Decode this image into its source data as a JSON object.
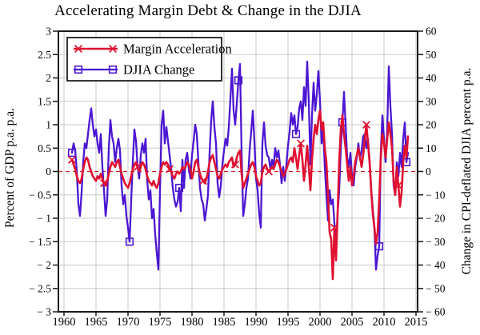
{
  "chart_data": {
    "type": "line",
    "title": "Accelerating Margin Debt & Change in the DJIA",
    "grid": true,
    "legend_position": "top-left",
    "x_start": 1961.25,
    "x_step": 0.25,
    "xlim": [
      1959.125,
      2015.25
    ],
    "x_ticks": {
      "years": [
        1960,
        1965,
        1970,
        1975,
        1980,
        1985,
        1990,
        1995,
        2000,
        2005,
        2010,
        2015
      ],
      "labels": [
        "1960",
        "1965",
        "1970",
        "1975",
        "1980",
        "1985",
        "1990",
        "1995",
        "2000",
        "2005",
        "2010",
        "2015"
      ]
    },
    "left_axis": {
      "label": "Percent of GDP p.a. p.a.",
      "lim": [
        -3,
        3
      ],
      "tick_values": [
        3,
        2.5,
        2,
        1.5,
        1,
        0.5,
        0,
        -0.5,
        -1,
        -1.5,
        -2,
        -2.5,
        -3
      ],
      "tick_labels": [
        "3",
        "2.5",
        "2",
        "1.5",
        "1",
        "0.5",
        "0",
        "− 0.5",
        "− 1",
        "− 1.5",
        "− 2",
        "− 2.5",
        "− 3"
      ]
    },
    "right_axis": {
      "label": "Change in CPI-deflated DJIA percent p.a.",
      "lim": [
        -60,
        60
      ],
      "tick_labels": [
        "60",
        "50",
        "40",
        "30",
        "20",
        "10",
        "0",
        "− 10",
        "− 20",
        "− 30",
        "− 40",
        "− 50",
        "− 60"
      ]
    },
    "zero_line": {
      "value": 0,
      "color": "#cc2222",
      "style": "dashed"
    },
    "grid_color": "#c9c9c9",
    "series": [
      {
        "name": "DJIA Change",
        "axis": "right",
        "color": "#4b16d2",
        "marker": "square",
        "marker_indices": [
          0,
          36,
          67,
          104,
          140,
          169,
          192,
          209
        ],
        "values": [
          8,
          12,
          9,
          0,
          -14,
          -19,
          -9,
          4,
          12,
          10,
          16,
          22,
          27,
          20,
          15,
          18,
          12,
          8,
          16,
          2,
          -8,
          -19,
          -12,
          10,
          22,
          15,
          12,
          4,
          10,
          14,
          9,
          -6,
          -14,
          -10,
          -19,
          -24,
          -30,
          -12,
          4,
          18,
          13,
          2,
          -3,
          7,
          12,
          8,
          14,
          -4,
          -12,
          -8,
          -20,
          -16,
          -27,
          -35,
          -42,
          -8,
          20,
          26,
          12,
          19,
          13,
          7,
          1,
          -7,
          -12,
          -15,
          -13,
          -7,
          -17,
          5,
          -7,
          5,
          8,
          1,
          -3,
          7,
          13,
          20,
          16,
          4,
          -7,
          -12,
          -14,
          -21,
          -16,
          -10,
          8,
          22,
          30,
          19,
          12,
          -5,
          -11,
          -6,
          3,
          9,
          14,
          11,
          19,
          31,
          44,
          26,
          20,
          29,
          39,
          46,
          8,
          -19,
          -14,
          -7,
          -3,
          9,
          17,
          26,
          13,
          -3,
          -8,
          -18,
          -24,
          12,
          21,
          11,
          7,
          6,
          1,
          5,
          2,
          10,
          6,
          9,
          3,
          -5,
          2,
          -4,
          3,
          11,
          17,
          25,
          20,
          24,
          16,
          19,
          27,
          30,
          22,
          36,
          28,
          47,
          30,
          3,
          24,
          38,
          26,
          33,
          43,
          30,
          12,
          18,
          2,
          -10,
          -21,
          -8,
          -14,
          -12,
          -22,
          -32,
          -18,
          -8,
          10,
          21,
          34,
          20,
          6,
          2,
          8,
          -2,
          -6,
          2,
          6,
          12,
          5,
          9,
          15,
          16,
          10,
          14,
          4,
          -8,
          -16,
          -24,
          -42,
          -36,
          -32,
          8,
          24,
          14,
          4,
          18,
          45,
          28,
          16,
          -6,
          -10,
          4,
          -2,
          8,
          2,
          14,
          21,
          4,
          8
        ]
      },
      {
        "name": "Margin Acceleration",
        "axis": "left",
        "color": "#e01030",
        "marker": "x",
        "marker_indices": [
          0,
          20,
          41,
          61,
          82,
          102,
          123,
          143,
          164,
          184,
          204
        ],
        "values": [
          0.25,
          0.15,
          0.05,
          -0.1,
          -0.2,
          -0.25,
          -0.15,
          0.05,
          0.2,
          0.3,
          0.25,
          0.1,
          0,
          -0.1,
          -0.15,
          -0.2,
          -0.1,
          -0.15,
          -0.05,
          -0.15,
          -0.25,
          -0.3,
          -0.2,
          -0.05,
          0.1,
          0.2,
          0.15,
          0.1,
          0.2,
          0.25,
          0.1,
          -0.05,
          -0.15,
          -0.25,
          -0.3,
          -0.35,
          -0.25,
          -0.1,
          0.05,
          0.15,
          0.2,
          0.1,
          0,
          0.1,
          0.2,
          0.15,
          0.05,
          -0.1,
          -0.2,
          -0.25,
          -0.3,
          -0.2,
          -0.3,
          -0.35,
          -0.25,
          -0.05,
          0.1,
          0.2,
          0.15,
          0.2,
          0.15,
          0.05,
          0,
          -0.1,
          -0.15,
          -0.05,
          0,
          -0.05,
          0,
          0.1,
          0.05,
          0.1,
          0.2,
          0.15,
          0.05,
          -0.15,
          0,
          0.2,
          0.25,
          0.1,
          -0.05,
          -0.15,
          -0.2,
          -0.25,
          -0.15,
          0,
          0.2,
          0.3,
          0.35,
          0.2,
          0.05,
          -0.1,
          -0.15,
          -0.05,
          0.05,
          0.1,
          0.15,
          0.1,
          0.2,
          0.25,
          0.3,
          0.1,
          0.15,
          0.3,
          0.4,
          0.45,
          -0.05,
          -0.35,
          -0.25,
          -0.15,
          -0.05,
          0.05,
          0.15,
          0.2,
          0.1,
          -0.1,
          -0.2,
          -0.3,
          -0.25,
          0,
          0.1,
          0.15,
          0.05,
          0,
          0.05,
          0.1,
          0.05,
          0.15,
          0.25,
          0.2,
          0.1,
          0,
          -0.1,
          -0.05,
          0.05,
          0.15,
          0.25,
          0.3,
          0.2,
          0.5,
          0.3,
          0.05,
          0.35,
          0.6,
          0.25,
          -0.2,
          0.15,
          0.55,
          0.1,
          -0.4,
          0.25,
          0.7,
          1.0,
          0.8,
          1.1,
          1.3,
          0.9,
          1.05,
          0.5,
          0.2,
          -0.5,
          -1.3,
          -1.45,
          -2.3,
          -1.2,
          -1.9,
          -0.9,
          0.2,
          0.9,
          1.2,
          0.8,
          0.5,
          0.15,
          -0.2,
          0.1,
          -0.3,
          -0.1,
          0.2,
          0.35,
          0.5,
          0.3,
          0.1,
          0.35,
          0.7,
          1.0,
          0.6,
          0.2,
          -0.4,
          -0.9,
          -1.2,
          -1.55,
          -1.3,
          -0.6,
          0.3,
          0.8,
          0.6,
          0.3,
          0.7,
          1.05,
          0.8,
          0.5,
          -0.2,
          -0.5,
          0.1,
          -0.3,
          -0.75,
          -0.45,
          0.2,
          0.55,
          0.3,
          0.75
        ]
      }
    ]
  }
}
